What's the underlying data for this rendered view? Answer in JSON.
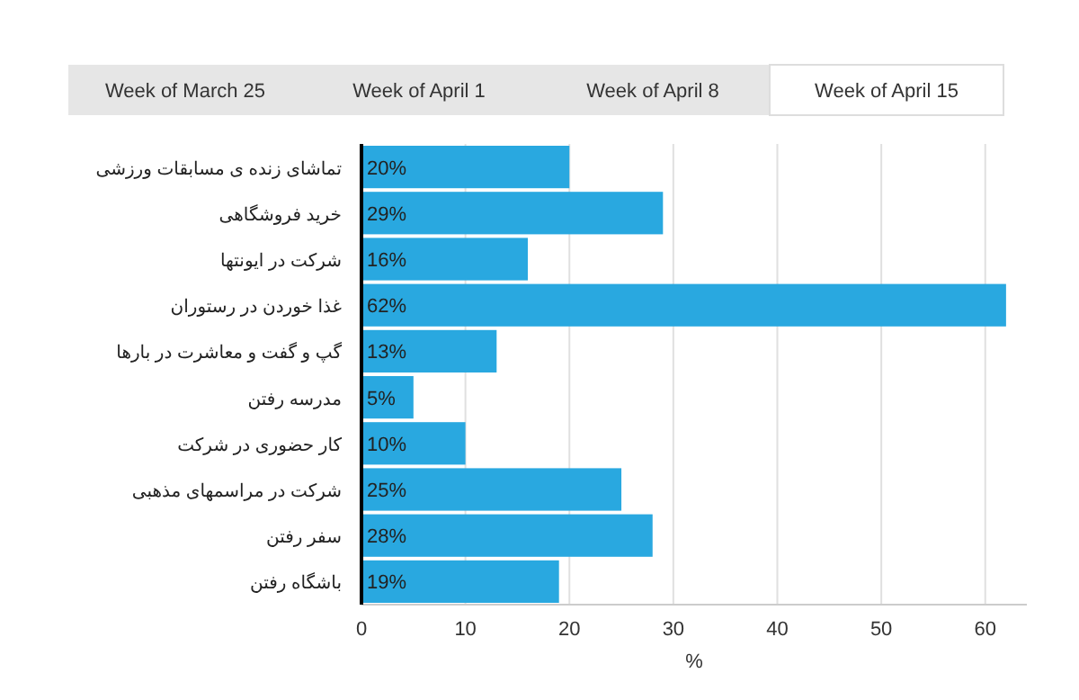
{
  "chart_data": {
    "type": "bar",
    "orientation": "horizontal",
    "categories": [
      "تماشای زنده ی مسابقات ورزشی",
      "خرید فروشگاهی",
      "شرکت در ایونتها",
      "غذا خوردن در رستوران",
      "گپ و گفت و معاشرت در بارها",
      "مدرسه رفتن",
      "کار حضوری در شرکت",
      "شرکت در مراسمهای مذهبی",
      "سفر رفتن",
      "باشگاه رفتن"
    ],
    "values": [
      20,
      29,
      16,
      62,
      13,
      5,
      10,
      25,
      28,
      19
    ],
    "value_labels": [
      "20%",
      "29%",
      "16%",
      "62%",
      "13%",
      "5%",
      "10%",
      "25%",
      "28%",
      "19%"
    ],
    "color": "#29a8e0",
    "xlim": [
      0,
      64
    ],
    "xticks": [
      0,
      10,
      20,
      30,
      40,
      50,
      60
    ],
    "xlabel": "%",
    "grid": "x",
    "annotations": [
      "Week of March 25",
      "Week of April 1",
      "Week of April 8",
      "Week of April 15"
    ]
  }
}
